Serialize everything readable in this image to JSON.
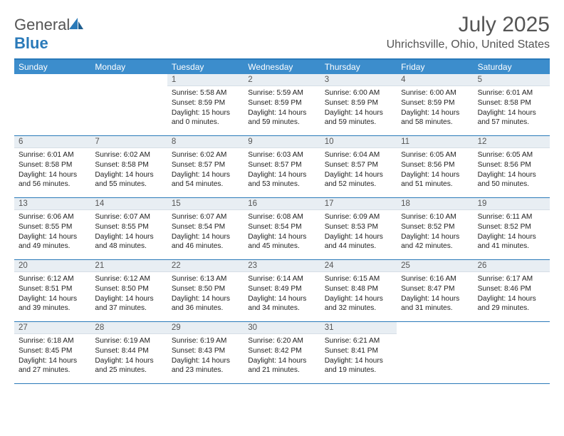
{
  "brand": {
    "part1": "General",
    "part2": "Blue"
  },
  "title": "July 2025",
  "location": "Uhrichsville, Ohio, United States",
  "colors": {
    "header_bg": "#3c8dcc",
    "border": "#2a7ab9",
    "daynum_bg": "#e8eef3",
    "text_muted": "#555"
  },
  "day_names": [
    "Sunday",
    "Monday",
    "Tuesday",
    "Wednesday",
    "Thursday",
    "Friday",
    "Saturday"
  ],
  "weeks": [
    [
      null,
      null,
      {
        "n": "1",
        "sr": "5:58 AM",
        "ss": "8:59 PM",
        "dl": "15 hours and 0 minutes."
      },
      {
        "n": "2",
        "sr": "5:59 AM",
        "ss": "8:59 PM",
        "dl": "14 hours and 59 minutes."
      },
      {
        "n": "3",
        "sr": "6:00 AM",
        "ss": "8:59 PM",
        "dl": "14 hours and 59 minutes."
      },
      {
        "n": "4",
        "sr": "6:00 AM",
        "ss": "8:59 PM",
        "dl": "14 hours and 58 minutes."
      },
      {
        "n": "5",
        "sr": "6:01 AM",
        "ss": "8:58 PM",
        "dl": "14 hours and 57 minutes."
      }
    ],
    [
      {
        "n": "6",
        "sr": "6:01 AM",
        "ss": "8:58 PM",
        "dl": "14 hours and 56 minutes."
      },
      {
        "n": "7",
        "sr": "6:02 AM",
        "ss": "8:58 PM",
        "dl": "14 hours and 55 minutes."
      },
      {
        "n": "8",
        "sr": "6:02 AM",
        "ss": "8:57 PM",
        "dl": "14 hours and 54 minutes."
      },
      {
        "n": "9",
        "sr": "6:03 AM",
        "ss": "8:57 PM",
        "dl": "14 hours and 53 minutes."
      },
      {
        "n": "10",
        "sr": "6:04 AM",
        "ss": "8:57 PM",
        "dl": "14 hours and 52 minutes."
      },
      {
        "n": "11",
        "sr": "6:05 AM",
        "ss": "8:56 PM",
        "dl": "14 hours and 51 minutes."
      },
      {
        "n": "12",
        "sr": "6:05 AM",
        "ss": "8:56 PM",
        "dl": "14 hours and 50 minutes."
      }
    ],
    [
      {
        "n": "13",
        "sr": "6:06 AM",
        "ss": "8:55 PM",
        "dl": "14 hours and 49 minutes."
      },
      {
        "n": "14",
        "sr": "6:07 AM",
        "ss": "8:55 PM",
        "dl": "14 hours and 48 minutes."
      },
      {
        "n": "15",
        "sr": "6:07 AM",
        "ss": "8:54 PM",
        "dl": "14 hours and 46 minutes."
      },
      {
        "n": "16",
        "sr": "6:08 AM",
        "ss": "8:54 PM",
        "dl": "14 hours and 45 minutes."
      },
      {
        "n": "17",
        "sr": "6:09 AM",
        "ss": "8:53 PM",
        "dl": "14 hours and 44 minutes."
      },
      {
        "n": "18",
        "sr": "6:10 AM",
        "ss": "8:52 PM",
        "dl": "14 hours and 42 minutes."
      },
      {
        "n": "19",
        "sr": "6:11 AM",
        "ss": "8:52 PM",
        "dl": "14 hours and 41 minutes."
      }
    ],
    [
      {
        "n": "20",
        "sr": "6:12 AM",
        "ss": "8:51 PM",
        "dl": "14 hours and 39 minutes."
      },
      {
        "n": "21",
        "sr": "6:12 AM",
        "ss": "8:50 PM",
        "dl": "14 hours and 37 minutes."
      },
      {
        "n": "22",
        "sr": "6:13 AM",
        "ss": "8:50 PM",
        "dl": "14 hours and 36 minutes."
      },
      {
        "n": "23",
        "sr": "6:14 AM",
        "ss": "8:49 PM",
        "dl": "14 hours and 34 minutes."
      },
      {
        "n": "24",
        "sr": "6:15 AM",
        "ss": "8:48 PM",
        "dl": "14 hours and 32 minutes."
      },
      {
        "n": "25",
        "sr": "6:16 AM",
        "ss": "8:47 PM",
        "dl": "14 hours and 31 minutes."
      },
      {
        "n": "26",
        "sr": "6:17 AM",
        "ss": "8:46 PM",
        "dl": "14 hours and 29 minutes."
      }
    ],
    [
      {
        "n": "27",
        "sr": "6:18 AM",
        "ss": "8:45 PM",
        "dl": "14 hours and 27 minutes."
      },
      {
        "n": "28",
        "sr": "6:19 AM",
        "ss": "8:44 PM",
        "dl": "14 hours and 25 minutes."
      },
      {
        "n": "29",
        "sr": "6:19 AM",
        "ss": "8:43 PM",
        "dl": "14 hours and 23 minutes."
      },
      {
        "n": "30",
        "sr": "6:20 AM",
        "ss": "8:42 PM",
        "dl": "14 hours and 21 minutes."
      },
      {
        "n": "31",
        "sr": "6:21 AM",
        "ss": "8:41 PM",
        "dl": "14 hours and 19 minutes."
      },
      null,
      null
    ]
  ],
  "labels": {
    "sunrise": "Sunrise: ",
    "sunset": "Sunset: ",
    "daylight": "Daylight: "
  }
}
